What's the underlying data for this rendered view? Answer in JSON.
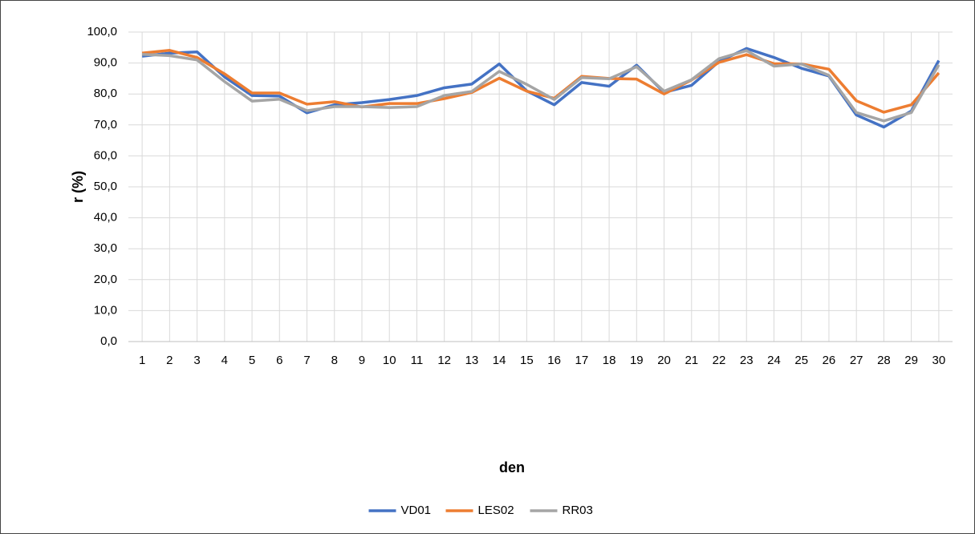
{
  "chart_data": {
    "type": "line",
    "x_label": "den",
    "y_label": "r (%)",
    "categories": [
      "1",
      "2",
      "3",
      "4",
      "5",
      "6",
      "7",
      "8",
      "9",
      "10",
      "11",
      "12",
      "13",
      "14",
      "15",
      "16",
      "17",
      "18",
      "19",
      "20",
      "21",
      "22",
      "23",
      "24",
      "25",
      "26",
      "27",
      "28",
      "29",
      "30"
    ],
    "series": [
      {
        "name": "VD01",
        "color": "#4472c4",
        "values": [
          92.2,
          93.2,
          93.6,
          85.5,
          79.5,
          79.3,
          73.9,
          76.5,
          77.2,
          78.2,
          79.5,
          82.0,
          83.2,
          89.7,
          81.0,
          76.5,
          83.7,
          82.5,
          89.3,
          80.5,
          82.8,
          90.5,
          94.7,
          91.8,
          88.3,
          85.8,
          73.2,
          69.3,
          74.5,
          90.8
        ]
      },
      {
        "name": "LES02",
        "color": "#ed7d31",
        "values": [
          93.2,
          94.1,
          91.8,
          86.5,
          80.3,
          80.3,
          76.7,
          77.5,
          75.8,
          76.9,
          76.9,
          78.5,
          80.5,
          85.1,
          80.9,
          78.6,
          85.7,
          85.0,
          84.8,
          80.0,
          84.5,
          90.2,
          92.7,
          89.8,
          89.7,
          88.0,
          77.8,
          74.1,
          76.5,
          86.8
        ]
      },
      {
        "name": "RR03",
        "color": "#a5a5a5",
        "values": [
          92.8,
          92.4,
          91.0,
          84.0,
          77.7,
          78.3,
          74.6,
          75.9,
          75.9,
          75.6,
          75.9,
          79.5,
          80.8,
          87.3,
          83.1,
          78.2,
          85.3,
          84.9,
          88.8,
          80.9,
          84.6,
          91.4,
          94.0,
          89.0,
          89.7,
          86.0,
          74.0,
          71.3,
          74.0,
          89.4
        ]
      }
    ],
    "ylim": [
      0,
      100
    ],
    "yticks": [
      {
        "value": 0,
        "label": "0,0"
      },
      {
        "value": 10,
        "label": "10,0"
      },
      {
        "value": 20,
        "label": "20,0"
      },
      {
        "value": 30,
        "label": "30,0"
      },
      {
        "value": 40,
        "label": "40,0"
      },
      {
        "value": 50,
        "label": "50,0"
      },
      {
        "value": 60,
        "label": "60,0"
      },
      {
        "value": 70,
        "label": "70,0"
      },
      {
        "value": 80,
        "label": "80,0"
      },
      {
        "value": 90,
        "label": "90,0"
      },
      {
        "value": 100,
        "label": "100,0"
      }
    ],
    "grid": true,
    "legend": "bottom"
  }
}
